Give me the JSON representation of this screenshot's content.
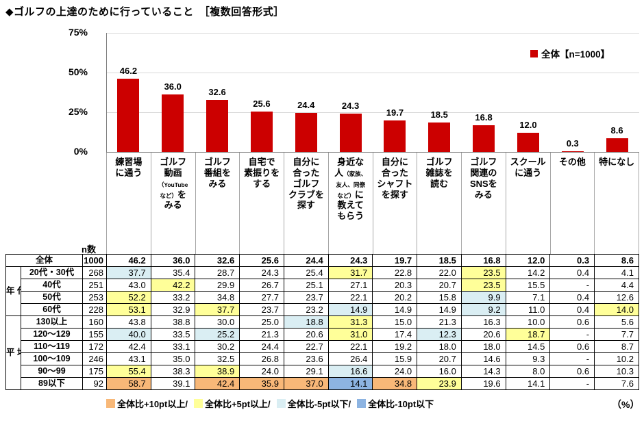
{
  "title": "◆ゴルフの上達のために行っていること　［複数回答形式］",
  "chart_data": {
    "type": "bar",
    "title": "ゴルフの上達のために行っていること［複数回答形式］",
    "categories": [
      "練習場に通う",
      "ゴルフ動画（YouTubeなど）をみる",
      "ゴルフ番組をみる",
      "自宅で素振りをする",
      "自分に合ったゴルフクラブを探す",
      "身近な人（家族、友人、同僚など）に教えてもらう",
      "自分に合ったシャフトを探す",
      "ゴルフ雑誌を読む",
      "ゴルフ関連のSNSをみる",
      "スクールに通う",
      "その他",
      "特になし"
    ],
    "values": [
      46.2,
      36.0,
      32.6,
      25.6,
      24.4,
      24.3,
      19.7,
      18.5,
      16.8,
      12.0,
      0.3,
      8.6
    ],
    "value_labels": [
      "46.2",
      "36.0",
      "32.6",
      "25.6",
      "24.4",
      "24.3",
      "19.7",
      "18.5",
      "16.8",
      "12.0",
      "0.3",
      "8.6"
    ],
    "ylim": [
      0,
      75
    ],
    "yticks": [
      {
        "label": "75%",
        "value": 75
      },
      {
        "label": "50%",
        "value": 50
      },
      {
        "label": "25%",
        "value": 25
      },
      {
        "label": "0%",
        "value": 0
      }
    ],
    "grid": true,
    "bar_color": "#cc0000",
    "legend": {
      "label": "全体【n=1000】",
      "position": "top-right",
      "color": "#cc0000"
    },
    "category_label_lines": [
      [
        [
          {
            "t": "練習場"
          }
        ],
        [
          {
            "t": "に通う"
          }
        ]
      ],
      [
        [
          {
            "t": "ゴルフ"
          }
        ],
        [
          {
            "t": "動画"
          }
        ],
        [
          {
            "t": "（YouTube",
            "s": 1
          }
        ],
        [
          {
            "t": "など）",
            "s": 1
          },
          {
            "t": "を"
          }
        ],
        [
          {
            "t": "みる"
          }
        ]
      ],
      [
        [
          {
            "t": "ゴルフ"
          }
        ],
        [
          {
            "t": "番組を"
          }
        ],
        [
          {
            "t": "みる"
          }
        ]
      ],
      [
        [
          {
            "t": "自宅で"
          }
        ],
        [
          {
            "t": "素振りを"
          }
        ],
        [
          {
            "t": "する"
          }
        ]
      ],
      [
        [
          {
            "t": "自分に"
          }
        ],
        [
          {
            "t": "合った"
          }
        ],
        [
          {
            "t": "ゴルフ"
          }
        ],
        [
          {
            "t": "クラブを"
          }
        ],
        [
          {
            "t": "探す"
          }
        ]
      ],
      [
        [
          {
            "t": "身近な"
          }
        ],
        [
          {
            "t": "人"
          },
          {
            "t": "（家族、",
            "s": 1
          }
        ],
        [
          {
            "t": "友人、同僚",
            "s": 1
          }
        ],
        [
          {
            "t": "など）",
            "s": 1
          },
          {
            "t": "に"
          }
        ],
        [
          {
            "t": "教えて"
          }
        ],
        [
          {
            "t": "もらう"
          }
        ]
      ],
      [
        [
          {
            "t": "自分に"
          }
        ],
        [
          {
            "t": "合った"
          }
        ],
        [
          {
            "t": "シャフト"
          }
        ],
        [
          {
            "t": "を探す"
          }
        ]
      ],
      [
        [
          {
            "t": "ゴルフ"
          }
        ],
        [
          {
            "t": "雑誌を"
          }
        ],
        [
          {
            "t": "読む"
          }
        ]
      ],
      [
        [
          {
            "t": "ゴルフ"
          }
        ],
        [
          {
            "t": "関連の"
          }
        ],
        [
          {
            "t": "SNSを"
          }
        ],
        [
          {
            "t": "みる"
          }
        ]
      ],
      [
        [
          {
            "t": "スクール"
          }
        ],
        [
          {
            "t": "に通う"
          }
        ]
      ],
      [
        [
          {
            "t": "その他"
          }
        ]
      ],
      [
        [
          {
            "t": "特になし"
          }
        ]
      ]
    ]
  },
  "table": {
    "n_header": "n数",
    "highlight_colors": {
      "o": "#f8b878",
      "y": "#ffff99",
      "c": "#daeef3",
      "b": "#8db4e2"
    },
    "rows": [
      {
        "label": "全体",
        "label_span": 2,
        "n": "1000",
        "bold": true,
        "values": [
          "46.2",
          "36.0",
          "32.6",
          "25.6",
          "24.4",
          "24.3",
          "19.7",
          "18.5",
          "16.8",
          "12.0",
          "0.3",
          "8.6"
        ],
        "hl": [
          "",
          "",
          "",
          "",
          "",
          "",
          "",
          "",
          "",
          "",
          "",
          ""
        ]
      },
      {
        "group": "年代",
        "group_span": 4,
        "label": "20代・30代",
        "n": "268",
        "values": [
          "37.7",
          "35.4",
          "28.7",
          "24.3",
          "25.4",
          "31.7",
          "22.8",
          "22.0",
          "23.5",
          "14.2",
          "0.4",
          "4.1"
        ],
        "hl": [
          "c",
          "",
          "",
          "",
          "",
          "y",
          "",
          "",
          "y",
          "",
          "",
          ""
        ]
      },
      {
        "label": "40代",
        "n": "251",
        "values": [
          "43.0",
          "42.2",
          "29.9",
          "26.7",
          "25.1",
          "27.1",
          "20.3",
          "20.7",
          "23.5",
          "15.5",
          "-",
          "4.4"
        ],
        "hl": [
          "",
          "y",
          "",
          "",
          "",
          "",
          "",
          "",
          "y",
          "",
          "",
          ""
        ]
      },
      {
        "label": "50代",
        "n": "253",
        "values": [
          "52.2",
          "33.2",
          "34.8",
          "27.7",
          "23.7",
          "22.1",
          "20.2",
          "15.8",
          "9.9",
          "7.1",
          "0.4",
          "12.6"
        ],
        "hl": [
          "y",
          "",
          "",
          "",
          "",
          "",
          "",
          "",
          "c",
          "",
          "",
          ""
        ]
      },
      {
        "label": "60代",
        "n": "228",
        "values": [
          "53.1",
          "32.9",
          "37.7",
          "23.7",
          "23.2",
          "14.9",
          "14.9",
          "14.9",
          "9.2",
          "11.0",
          "0.4",
          "14.0"
        ],
        "hl": [
          "y",
          "",
          "y",
          "",
          "",
          "c",
          "",
          "",
          "c",
          "",
          "",
          "y"
        ]
      },
      {
        "group": "平均スコア",
        "group_span": 6,
        "label": "130以上",
        "n": "160",
        "values": [
          "43.8",
          "38.8",
          "30.0",
          "25.0",
          "18.8",
          "31.3",
          "15.0",
          "21.3",
          "16.3",
          "10.0",
          "0.6",
          "5.6"
        ],
        "hl": [
          "",
          "",
          "",
          "",
          "c",
          "y",
          "",
          "",
          "",
          "",
          "",
          ""
        ]
      },
      {
        "label": "120〜129",
        "n": "155",
        "values": [
          "40.0",
          "33.5",
          "25.2",
          "21.3",
          "20.6",
          "31.0",
          "17.4",
          "12.3",
          "20.6",
          "18.7",
          "-",
          "7.7"
        ],
        "hl": [
          "c",
          "",
          "c",
          "",
          "",
          "y",
          "",
          "c",
          "",
          "y",
          "",
          ""
        ]
      },
      {
        "label": "110〜119",
        "n": "172",
        "values": [
          "42.4",
          "33.1",
          "30.2",
          "24.4",
          "22.7",
          "22.1",
          "19.2",
          "18.0",
          "18.0",
          "14.5",
          "0.6",
          "8.7"
        ],
        "hl": [
          "",
          "",
          "",
          "",
          "",
          "",
          "",
          "",
          "",
          "",
          "",
          ""
        ]
      },
      {
        "label": "100〜109",
        "n": "246",
        "values": [
          "43.1",
          "35.0",
          "32.5",
          "26.8",
          "23.6",
          "26.4",
          "15.9",
          "20.7",
          "14.6",
          "9.3",
          "-",
          "10.2"
        ],
        "hl": [
          "",
          "",
          "",
          "",
          "",
          "",
          "",
          "",
          "",
          "",
          "",
          ""
        ]
      },
      {
        "label": "90〜99",
        "n": "175",
        "values": [
          "55.4",
          "38.3",
          "38.9",
          "24.0",
          "29.1",
          "16.6",
          "24.0",
          "16.0",
          "14.3",
          "8.0",
          "0.6",
          "10.3"
        ],
        "hl": [
          "y",
          "",
          "y",
          "",
          "",
          "c",
          "",
          "",
          "",
          "",
          "",
          ""
        ]
      },
      {
        "label": "89以下",
        "n": "92",
        "values": [
          "58.7",
          "39.1",
          "42.4",
          "35.9",
          "37.0",
          "14.1",
          "34.8",
          "23.9",
          "19.6",
          "14.1",
          "-",
          "7.6"
        ],
        "hl": [
          "o",
          "",
          "o",
          "o",
          "o",
          "b",
          "o",
          "y",
          "",
          "",
          "",
          ""
        ]
      }
    ]
  },
  "footer": {
    "items": [
      {
        "label": "全体比+10pt以上/",
        "color": "#f8b878"
      },
      {
        "label": "全体比+5pt以上/",
        "color": "#ffff99"
      },
      {
        "label": "全体比-5pt以下/",
        "color": "#daeef3"
      },
      {
        "label": "全体比-10pt以下",
        "color": "#8db4e2"
      }
    ],
    "unit": "（%）"
  }
}
